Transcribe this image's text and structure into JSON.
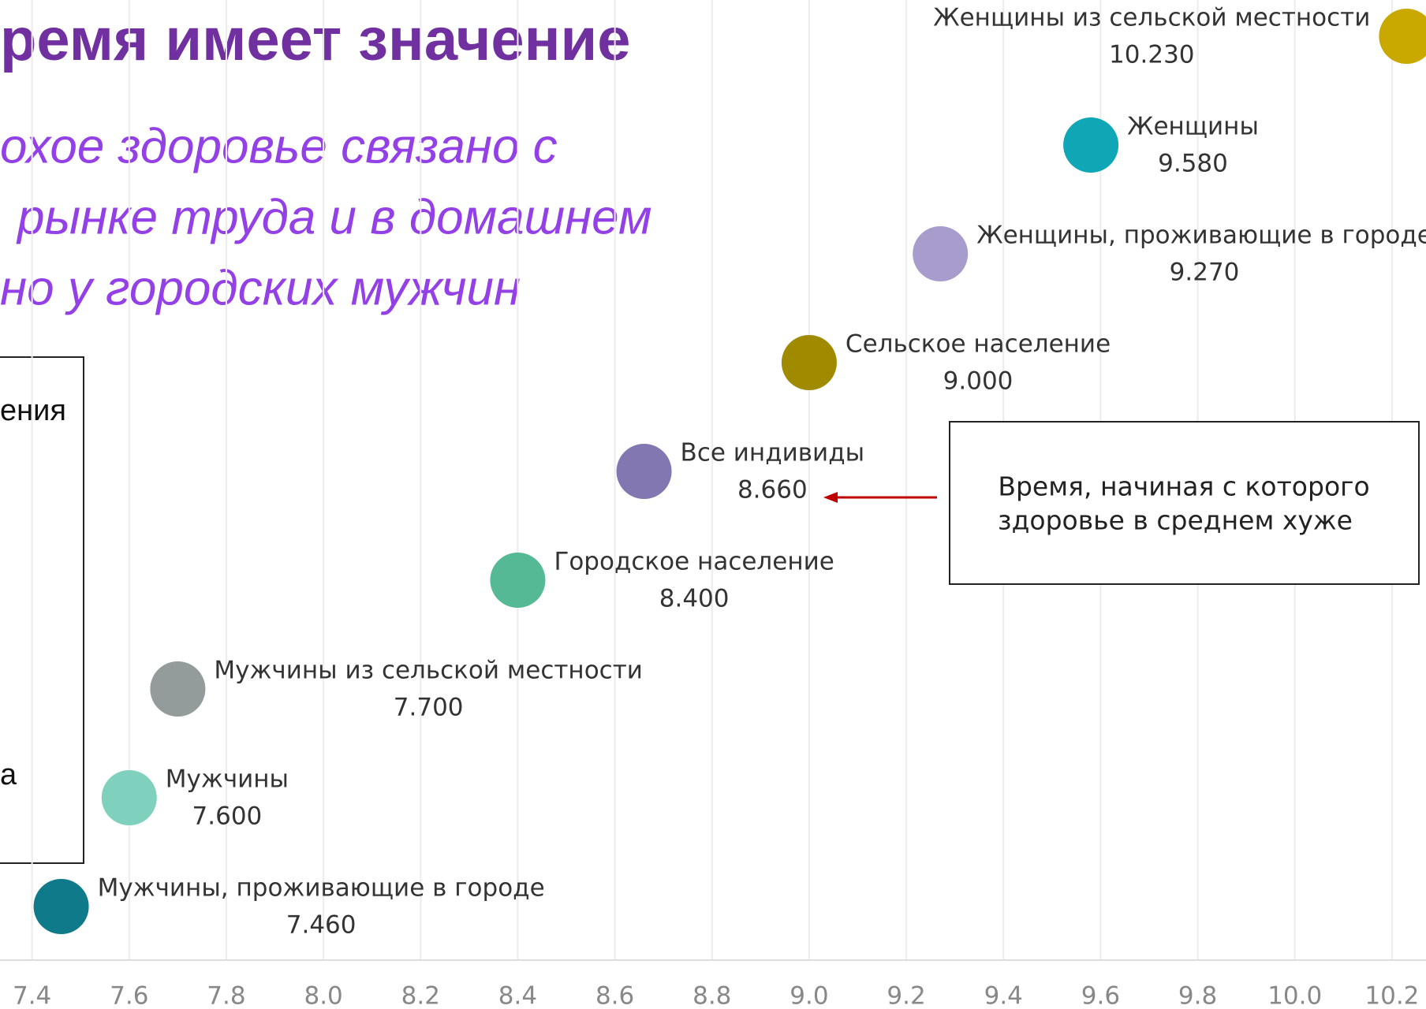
{
  "chart_data": {
    "type": "dotplot",
    "title": "ремя имеет значение",
    "subtitle": [
      "охое здоровье связано с",
      "рынке труда и в домашнем",
      "но у городских мужчин"
    ],
    "categories": [
      "Женщины из сельской местности",
      "Женщины",
      "Женщины, проживающие в городе",
      "Сельское население",
      "Все индивиды",
      "Городское население",
      "Мужчины из сельской местности",
      "Мужчины",
      "Мужчины, проживающие в городе"
    ],
    "values": [
      10.23,
      9.58,
      9.27,
      9.0,
      8.66,
      8.4,
      7.7,
      7.6,
      7.46
    ],
    "value_labels": [
      "10.230",
      "9.580",
      "9.270",
      "9.000",
      "8.660",
      "8.400",
      "7.700",
      "7.600",
      "7.460"
    ],
    "colors": [
      "#c9a800",
      "#0fa6b5",
      "#a79ccc",
      "#a08a00",
      "#8277b0",
      "#55b995",
      "#939b9b",
      "#7fd1be",
      "#0f7b8a"
    ],
    "xlim": [
      7.334,
      10.27
    ],
    "xticks": [
      7.4,
      7.6,
      7.8,
      {
        "value": 8,
        "label": "8.0"
      },
      8.2,
      8.4,
      8.6,
      8.8,
      {
        "value": 9,
        "label": "9.0"
      },
      9.2,
      9.4,
      9.6,
      9.8,
      {
        "value": 10,
        "label": "10.0"
      },
      10.2
    ],
    "grid": true,
    "annotation": [
      "Время, начиная с которого",
      "здоровье в среднем хуже"
    ]
  },
  "side_box": [
    "ения",
    "а"
  ]
}
